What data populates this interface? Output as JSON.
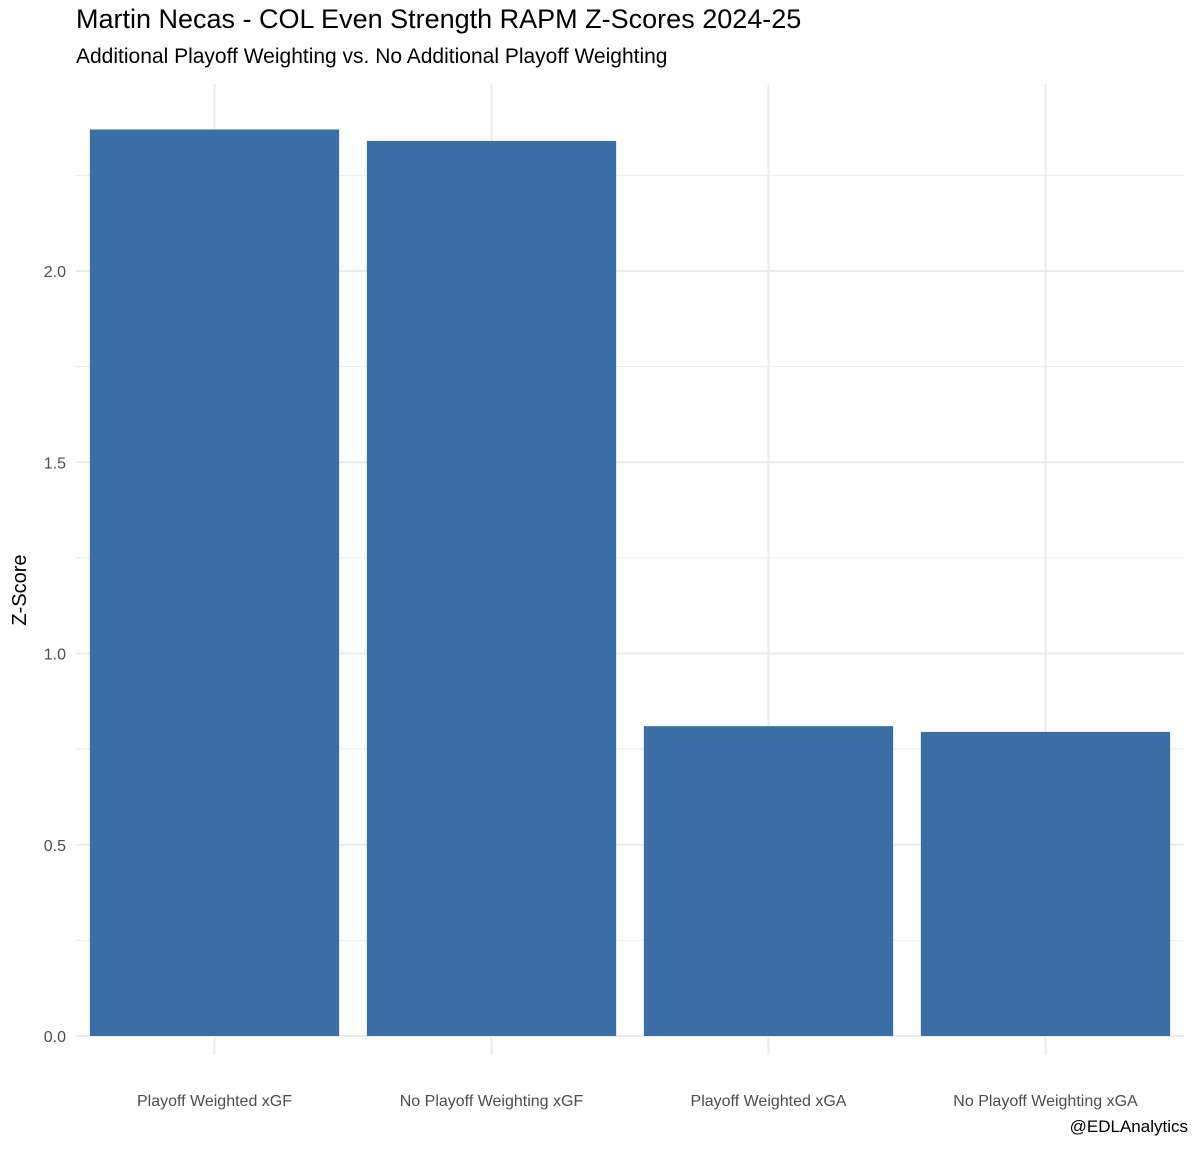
{
  "chart_data": {
    "type": "bar",
    "title": "Martin Necas - COL Even Strength RAPM Z-Scores 2024-25",
    "subtitle": "Additional Playoff Weighting vs. No Additional Playoff Weighting",
    "xlabel": "",
    "ylabel": "Z-Score",
    "caption": "@EDLAnalytics",
    "categories": [
      "Playoff Weighted xGF",
      "No Playoff Weighting xGF",
      "Playoff Weighted xGA",
      "No Playoff Weighting xGA"
    ],
    "values": [
      2.37,
      2.34,
      0.81,
      0.795
    ],
    "ylim": [
      0,
      2.5
    ],
    "yticks": [
      0.0,
      0.5,
      1.0,
      1.5,
      2.0
    ],
    "ytick_labels": [
      "0.0",
      "0.5",
      "1.0",
      "1.5",
      "2.0"
    ],
    "grid": true,
    "legend": "none",
    "bar_color": "#3a6ea5",
    "grid_color": "#ebebeb"
  }
}
